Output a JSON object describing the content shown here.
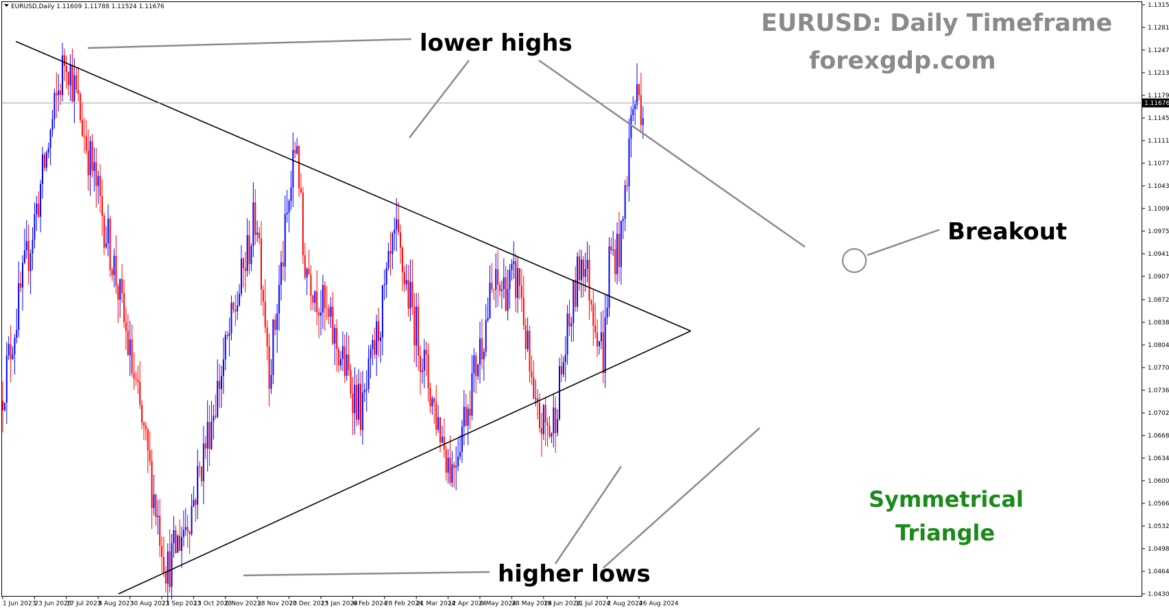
{
  "window": {
    "header_text": "EURUSD,Daily  1.11609 1.11788 1.11524 1.11676"
  },
  "annotations": {
    "title": "EURUSD: Daily Timeframe",
    "site": "forexgdp.com",
    "lower_highs": "lower highs",
    "higher_lows": "higher lows",
    "breakout": "Breakout",
    "pattern_line1": "Symmetrical",
    "pattern_line2": "Triangle"
  },
  "colors": {
    "bull": "#0000ff",
    "bear": "#ff0000",
    "trendline": "#000000",
    "pointer": "#8a8a8a",
    "title": "#8a8a8a",
    "pattern_label": "#1a8a1a"
  },
  "chart_data": {
    "type": "candlestick",
    "symbol": "EURUSD",
    "timeframe": "Daily",
    "last_price": "1.11676",
    "ohlc_header": {
      "open": 1.11609,
      "high": 1.11788,
      "low": 1.11524,
      "close": 1.11676
    },
    "y_ticks": [
      "1.13150",
      "1.12810",
      "1.12470",
      "1.12130",
      "1.11790",
      "1.11450",
      "1.11110",
      "1.10770",
      "1.10430",
      "1.10090",
      "1.09750",
      "1.09410",
      "1.09070",
      "1.08720",
      "1.08380",
      "1.08040",
      "1.07700",
      "1.07360",
      "1.07020",
      "1.06680",
      "1.06340",
      "1.06000",
      "1.05660",
      "1.05320",
      "1.04980",
      "1.04640",
      "1.04300"
    ],
    "ylim": [
      1.043,
      1.1315
    ],
    "x_ticks": [
      "1 Jun 2023",
      "23 Jun 2023",
      "17 Jul 2023",
      "8 Aug 2023",
      "30 Aug 2023",
      "21 Sep 2023",
      "13 Oct 2023",
      "6 Nov 2023",
      "28 Nov 2023",
      "20 Dec 2023",
      "15 Jan 2024",
      "6 Feb 2024",
      "28 Feb 2024",
      "21 Mar 2024",
      "12 Apr 2024",
      "6 May 2024",
      "28 May 2024",
      "19 Jun 2024",
      "11 Jul 2024",
      "2 Aug 2024",
      "26 Aug 2024"
    ],
    "key_points": [
      {
        "date": "1 Jun 2023",
        "price": 1.072
      },
      {
        "date": "18 Jul 2023",
        "price": 1.1245
      },
      {
        "date": "21 Aug 2023",
        "price": 1.0915
      },
      {
        "date": "26 Sep 2023",
        "price": 1.0465
      },
      {
        "date": "13 Oct 2023",
        "price": 1.056
      },
      {
        "date": "3 Oct 2023",
        "price": 1.0505
      },
      {
        "date": "29 Nov 2023",
        "price": 1.1005
      },
      {
        "date": "8 Dec 2023",
        "price": 1.0765
      },
      {
        "date": "28 Dec 2023",
        "price": 1.112
      },
      {
        "date": "2 Jan 2024",
        "price": 1.094
      },
      {
        "date": "14 Feb 2024",
        "price": 1.07
      },
      {
        "date": "8 Mar 2024",
        "price": 1.0965
      },
      {
        "date": "2 Apr 2024",
        "price": 1.0725
      },
      {
        "date": "16 Apr 2024",
        "price": 1.0615
      },
      {
        "date": "3 May 2024",
        "price": 1.076
      },
      {
        "date": "16 May 2024",
        "price": 1.0885
      },
      {
        "date": "4 Jun 2024",
        "price": 1.09
      },
      {
        "date": "14 Jun 2024",
        "price": 1.0695
      },
      {
        "date": "26 Jun 2024",
        "price": 1.0675
      },
      {
        "date": "17 Jul 2024",
        "price": 1.0945
      },
      {
        "date": "1 Aug 2024",
        "price": 1.0785
      },
      {
        "date": "5 Aug 2024",
        "price": 1.0935
      },
      {
        "date": "14 Aug 2024",
        "price": 1.0955
      },
      {
        "date": "22 Aug 2024",
        "price": 1.1155
      },
      {
        "date": "27 Aug 2024",
        "price": 1.1185
      },
      {
        "date": "29 Aug 2024",
        "price": 1.1168
      }
    ],
    "trendlines": [
      {
        "name": "upper",
        "from": {
          "date": "10 Jun 2023",
          "price": 1.126
        },
        "to": {
          "date": "4 Oct 2024",
          "price": 1.0825
        }
      },
      {
        "name": "lower",
        "from": {
          "date": "22 Aug 2023",
          "price": 1.043
        },
        "to": {
          "date": "4 Oct 2024",
          "price": 1.0825
        }
      }
    ],
    "grid": false,
    "legend": "none"
  }
}
